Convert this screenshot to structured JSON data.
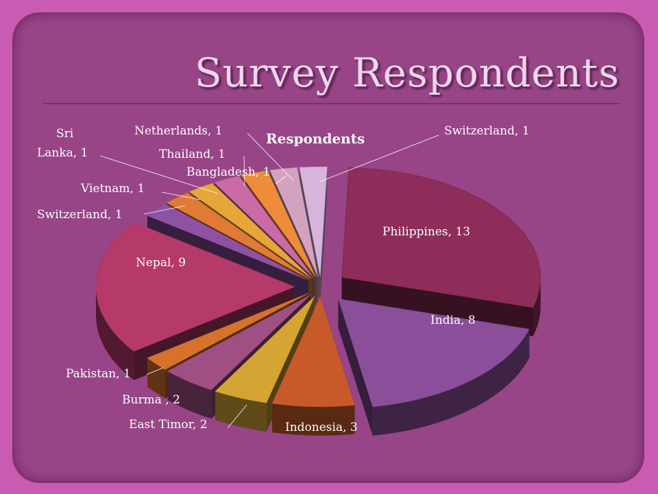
{
  "slide": {
    "title": "Survey Respondents"
  },
  "chart_data": {
    "type": "pie",
    "title": "Respondents",
    "style": "3d-exploded",
    "slices": [
      {
        "label": "Philippines",
        "value": 13,
        "display": "Philippines, 13",
        "color": "#8e2c5a"
      },
      {
        "label": "India",
        "value": 8,
        "display": "India, 8",
        "color": "#8a4e9a"
      },
      {
        "label": "Indonesia",
        "value": 3,
        "display": "Indonesia, 3",
        "color": "#c85a2a"
      },
      {
        "label": "East Timor",
        "value": 2,
        "display": "East Timor, 2",
        "color": "#d5a534"
      },
      {
        "label": "Burma",
        "value": 2,
        "display": "Burma , 2",
        "color": "#a04f84"
      },
      {
        "label": "Pakistan",
        "value": 1,
        "display": "Pakistan, 1",
        "color": "#d6722c"
      },
      {
        "label": "Nepal",
        "value": 9,
        "display": "Nepal, 9",
        "color": "#b53a6a"
      },
      {
        "label": "Switzerland",
        "value": 1,
        "display": "Switzerland, 1",
        "color": "#8f52a3"
      },
      {
        "label": "Vietnam",
        "value": 1,
        "display": "Vietnam, 1",
        "color": "#e07a36"
      },
      {
        "label": "Sri Lanka",
        "value": 1,
        "display": "Sri Lanka, 1",
        "color": "#e7a63a"
      },
      {
        "label": "Thailand",
        "value": 1,
        "display": "Thailand, 1",
        "color": "#cc6aa8"
      },
      {
        "label": "Bangladesh",
        "value": 1,
        "display": "Bangladesh, 1",
        "color": "#ee8c3a"
      },
      {
        "label": "Netherlands",
        "value": 1,
        "display": "Netherlands, 1",
        "color": "#d4a2bf"
      },
      {
        "label": "Switzerland",
        "value": 1,
        "display": "Switzerland, 1",
        "color": "#d8b3dc"
      }
    ]
  }
}
